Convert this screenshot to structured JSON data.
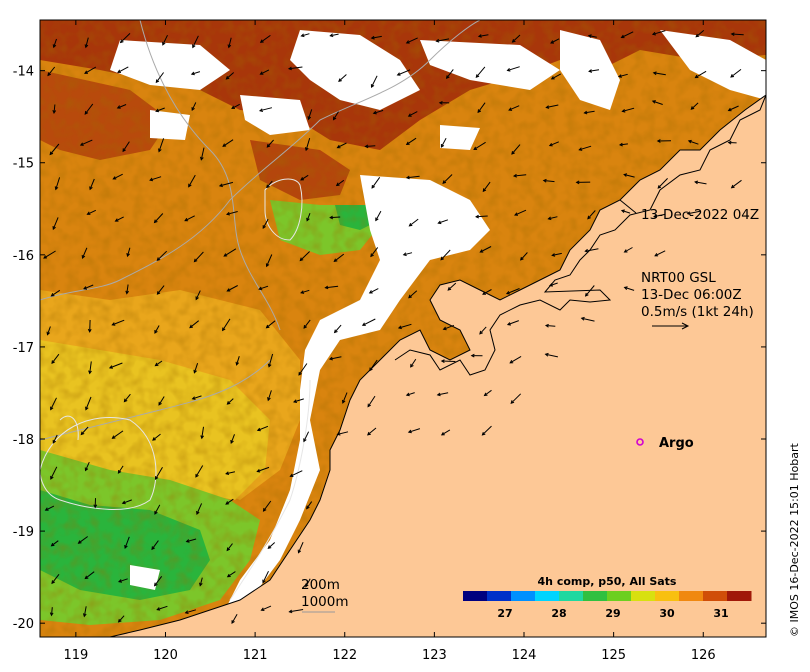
{
  "map": {
    "lon_range": [
      118.6,
      126.7
    ],
    "lat_range": [
      -20.15,
      -13.45
    ],
    "lon_ticks": [
      "119",
      "120",
      "121",
      "122",
      "123",
      "124",
      "125",
      "126"
    ],
    "lat_ticks": [
      "-14",
      "-15",
      "-16",
      "-17",
      "-18",
      "-19",
      "-20"
    ],
    "colors": {
      "land": "#fdc896",
      "cloud": "#ffffff",
      "warm_sst": "#d9840f",
      "hot_sst": "#a8360a",
      "cool_sst": "#2ab43c",
      "mid_sst": "#e9c321",
      "contour": "#aaaaaa",
      "argo": "#d100d1"
    }
  },
  "annotations": {
    "track_time": "13-Dec-2022 04Z",
    "current_title": "NRT00 GSL",
    "current_time": "13-Dec 06:00Z",
    "current_scale": "0.5m/s (1kt 24h)",
    "argo_label": "Argo",
    "depth_200": "200m",
    "depth_1000": "1000m",
    "credit": "© IMOS 16-Dec-2022 15:01 Hobart"
  },
  "colorbar": {
    "title": "4h comp, p50, All Sats",
    "ticks": [
      "27",
      "28",
      "29",
      "30",
      "31"
    ],
    "stops": [
      "#00007f",
      "#0030c8",
      "#0090ff",
      "#00d4ff",
      "#20d8a0",
      "#30c040",
      "#6ccf20",
      "#d8e010",
      "#f8c010",
      "#f08810",
      "#d04e08",
      "#a01808"
    ]
  }
}
